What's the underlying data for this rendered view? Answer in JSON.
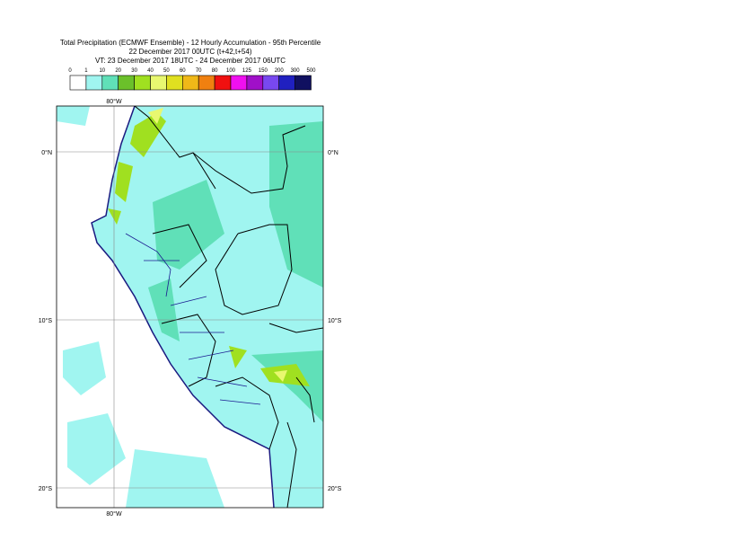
{
  "header": {
    "title": "Total Precipitation (ECMWF Ensemble) - 12 Hourly Accumulation - 95th Percentile",
    "base_time": "22 December 2017 00UTC (t+42,t+54)",
    "valid_time": "VT: 23 December 2017 18UTC - 24 December 2017 06UTC"
  },
  "legend": {
    "labels": [
      "0",
      "1",
      "10",
      "20",
      "30",
      "40",
      "50",
      "60",
      "70",
      "80",
      "100",
      "125",
      "150",
      "200",
      "300",
      "500"
    ],
    "colors": [
      "#ffffff",
      "#a0f5f0",
      "#60e0b8",
      "#6bc02a",
      "#a0e020",
      "#e8f870",
      "#e0e020",
      "#f0b818",
      "#f08010",
      "#f01010",
      "#f010f0",
      "#a010c8",
      "#7848f0",
      "#2020c0",
      "#101060"
    ]
  },
  "map": {
    "lon_label": "80°W",
    "lat_labels": [
      "0°N",
      "10°S",
      "20°S"
    ]
  }
}
